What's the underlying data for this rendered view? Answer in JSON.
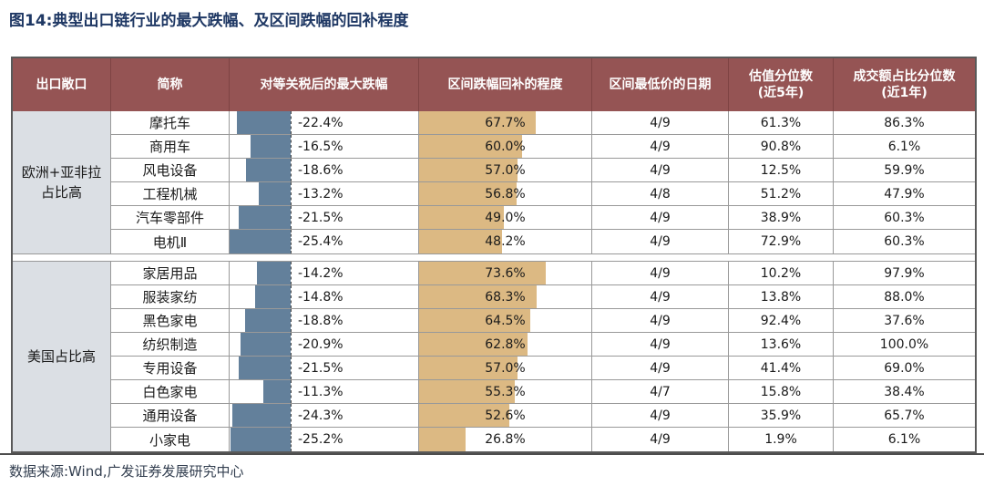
{
  "title": "图14:典型出口链行业的最大跌幅、及区间跌幅的回补程度",
  "source_note": "数据来源:Wind,广发证券发展研究中心",
  "colors": {
    "title_text": "#1f3864",
    "header_bg": "#955454",
    "header_divider": "#7e4343",
    "drawdown_bar": "#63809b",
    "recovery_bar": "#dcb983",
    "group_cell_bg": "#dbdfe4",
    "grid_line": "#999999",
    "outer_border": "#595959"
  },
  "chart_data": {
    "type": "table",
    "title": "典型出口链行业的最大跌幅、及区间跌幅的回补程度",
    "columns": [
      {
        "label": "出口敞口"
      },
      {
        "label": "简称"
      },
      {
        "label": "对等关税后的最大跌幅"
      },
      {
        "label": "区间跌幅回补的程度"
      },
      {
        "label": "区间最低价的日期"
      },
      {
        "label": "估值分位数",
        "sub": "(近5年)"
      },
      {
        "label": "成交额占比分位数",
        "sub": "(近1年)"
      }
    ],
    "drawdown_bar_max": 25.4,
    "recovery_bar_max": 100,
    "groups": [
      {
        "label": "欧洲+亚非拉占比高",
        "label_lines": [
          "欧洲+亚非拉",
          "占比高"
        ],
        "rows": [
          {
            "name": "摩托车",
            "drawdown": "-22.4%",
            "drawdown_value": -22.4,
            "recovery": "67.7%",
            "recovery_value": 67.7,
            "low_date": "4/9",
            "valuation_pct": "61.3%",
            "turnover_pct": "86.3%"
          },
          {
            "name": "商用车",
            "drawdown": "-16.5%",
            "drawdown_value": -16.5,
            "recovery": "60.0%",
            "recovery_value": 60.0,
            "low_date": "4/9",
            "valuation_pct": "90.8%",
            "turnover_pct": "6.1%"
          },
          {
            "name": "风电设备",
            "drawdown": "-18.6%",
            "drawdown_value": -18.6,
            "recovery": "57.0%",
            "recovery_value": 57.0,
            "low_date": "4/9",
            "valuation_pct": "12.5%",
            "turnover_pct": "59.9%"
          },
          {
            "name": "工程机械",
            "drawdown": "-13.2%",
            "drawdown_value": -13.2,
            "recovery": "56.8%",
            "recovery_value": 56.8,
            "low_date": "4/8",
            "valuation_pct": "51.2%",
            "turnover_pct": "47.9%"
          },
          {
            "name": "汽车零部件",
            "drawdown": "-21.5%",
            "drawdown_value": -21.5,
            "recovery": "49.0%",
            "recovery_value": 49.0,
            "low_date": "4/9",
            "valuation_pct": "38.9%",
            "turnover_pct": "60.3%"
          },
          {
            "name": "电机Ⅱ",
            "drawdown": "-25.4%",
            "drawdown_value": -25.4,
            "recovery": "48.2%",
            "recovery_value": 48.2,
            "low_date": "4/9",
            "valuation_pct": "72.9%",
            "turnover_pct": "60.3%"
          }
        ]
      },
      {
        "label": "美国占比高",
        "label_lines": [
          "美国占比高"
        ],
        "rows": [
          {
            "name": "家居用品",
            "drawdown": "-14.2%",
            "drawdown_value": -14.2,
            "recovery": "73.6%",
            "recovery_value": 73.6,
            "low_date": "4/9",
            "valuation_pct": "10.2%",
            "turnover_pct": "97.9%"
          },
          {
            "name": "服装家纺",
            "drawdown": "-14.8%",
            "drawdown_value": -14.8,
            "recovery": "68.3%",
            "recovery_value": 68.3,
            "low_date": "4/9",
            "valuation_pct": "13.8%",
            "turnover_pct": "88.0%"
          },
          {
            "name": "黑色家电",
            "drawdown": "-18.8%",
            "drawdown_value": -18.8,
            "recovery": "64.5%",
            "recovery_value": 64.5,
            "low_date": "4/9",
            "valuation_pct": "92.4%",
            "turnover_pct": "37.6%"
          },
          {
            "name": "纺织制造",
            "drawdown": "-20.9%",
            "drawdown_value": -20.9,
            "recovery": "62.8%",
            "recovery_value": 62.8,
            "low_date": "4/9",
            "valuation_pct": "13.6%",
            "turnover_pct": "100.0%"
          },
          {
            "name": "专用设备",
            "drawdown": "-21.5%",
            "drawdown_value": -21.5,
            "recovery": "57.0%",
            "recovery_value": 57.0,
            "low_date": "4/9",
            "valuation_pct": "41.4%",
            "turnover_pct": "69.0%"
          },
          {
            "name": "白色家电",
            "drawdown": "-11.3%",
            "drawdown_value": -11.3,
            "recovery": "55.3%",
            "recovery_value": 55.3,
            "low_date": "4/7",
            "valuation_pct": "15.8%",
            "turnover_pct": "38.4%"
          },
          {
            "name": "通用设备",
            "drawdown": "-24.3%",
            "drawdown_value": -24.3,
            "recovery": "52.6%",
            "recovery_value": 52.6,
            "low_date": "4/9",
            "valuation_pct": "35.9%",
            "turnover_pct": "65.7%"
          },
          {
            "name": "小家电",
            "drawdown": "-25.2%",
            "drawdown_value": -25.2,
            "recovery": "26.8%",
            "recovery_value": 26.8,
            "low_date": "4/9",
            "valuation_pct": "1.9%",
            "turnover_pct": "6.1%"
          }
        ]
      }
    ]
  }
}
